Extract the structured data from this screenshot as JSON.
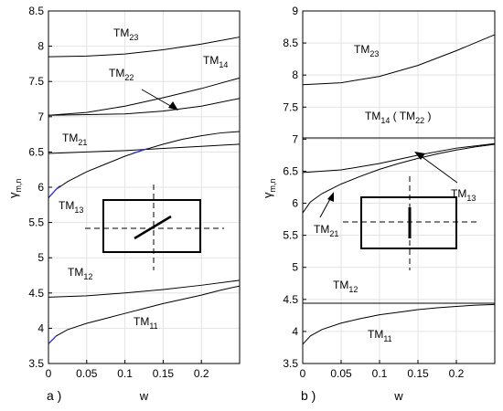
{
  "chart_data": [
    {
      "panel": "a )",
      "type": "line",
      "xlabel": "w",
      "ylabel": "γm,n",
      "xlim": [
        0,
        0.25
      ],
      "ylim": [
        3.5,
        8.5
      ],
      "xticks": [
        "0",
        "0.05",
        "0.1",
        "0.15",
        "0.2"
      ],
      "yticks": [
        "3.5",
        "4",
        "4.5",
        "5",
        "5.5",
        "6",
        "6.5",
        "7",
        "7.5",
        "8",
        "8.5"
      ],
      "grid": true,
      "series": [
        {
          "name": "TM23",
          "x": [
            0,
            0.05,
            0.1,
            0.15,
            0.2,
            0.25
          ],
          "y": [
            7.85,
            7.86,
            7.89,
            7.95,
            8.03,
            8.13
          ]
        },
        {
          "name": "TM14",
          "x": [
            0,
            0.05,
            0.1,
            0.15,
            0.2,
            0.25
          ],
          "y": [
            7.02,
            7.06,
            7.15,
            7.27,
            7.4,
            7.55
          ]
        },
        {
          "name": "TM22",
          "x": [
            0,
            0.05,
            0.1,
            0.15,
            0.2,
            0.25
          ],
          "y": [
            7.02,
            7.03,
            7.04,
            7.08,
            7.15,
            7.26
          ]
        },
        {
          "name": "TM21",
          "x": [
            0,
            0.05,
            0.1,
            0.15,
            0.2,
            0.25
          ],
          "y": [
            6.48,
            6.5,
            6.52,
            6.55,
            6.58,
            6.61
          ]
        },
        {
          "name": "TM13",
          "x": [
            0,
            0.01,
            0.025,
            0.05,
            0.075,
            0.1,
            0.125,
            0.15,
            0.175,
            0.2,
            0.225,
            0.25
          ],
          "y": [
            5.85,
            5.97,
            6.08,
            6.22,
            6.33,
            6.44,
            6.53,
            6.61,
            6.68,
            6.73,
            6.77,
            6.79
          ]
        },
        {
          "name": "TM12",
          "x": [
            0,
            0.05,
            0.1,
            0.15,
            0.2,
            0.25
          ],
          "y": [
            4.44,
            4.46,
            4.5,
            4.55,
            4.61,
            4.68
          ]
        },
        {
          "name": "TM11",
          "x": [
            0,
            0.01,
            0.025,
            0.05,
            0.075,
            0.1,
            0.125,
            0.15,
            0.175,
            0.2,
            0.225,
            0.25
          ],
          "y": [
            3.78,
            3.89,
            3.98,
            4.07,
            4.14,
            4.21,
            4.28,
            4.35,
            4.41,
            4.47,
            4.54,
            4.6
          ]
        }
      ],
      "labels": {
        "TM23": [
          "TM",
          "23"
        ],
        "TM14": [
          "TM",
          "14"
        ],
        "TM22": [
          "TM",
          "22"
        ],
        "TM21": [
          "TM",
          "21"
        ],
        "TM13": [
          "TM",
          "13"
        ],
        "TM12": [
          "TM",
          "12"
        ],
        "TM11": [
          "TM",
          "11"
        ]
      },
      "inset": "rectangle with tilted strip"
    },
    {
      "panel": "b )",
      "type": "line",
      "xlabel": "w",
      "ylabel": "γm,n",
      "xlim": [
        0,
        0.25
      ],
      "ylim": [
        3.5,
        9
      ],
      "xticks": [
        "0",
        "0.05",
        "0.1",
        "0.15",
        "0.2"
      ],
      "yticks": [
        "3.5",
        "4",
        "4.5",
        "5",
        "5.5",
        "6",
        "6.5",
        "7",
        "7.5",
        "8",
        "8.5",
        "9"
      ],
      "grid": true,
      "series": [
        {
          "name": "TM23",
          "x": [
            0,
            0.05,
            0.1,
            0.15,
            0.2,
            0.25
          ],
          "y": [
            7.85,
            7.88,
            7.98,
            8.15,
            8.38,
            8.63
          ]
        },
        {
          "name": "TM14 ( TM22 )",
          "x": [
            0,
            0.25
          ],
          "y": [
            7.02,
            7.02
          ]
        },
        {
          "name": "TM13",
          "x": [
            0,
            0.05,
            0.1,
            0.15,
            0.2,
            0.25
          ],
          "y": [
            6.48,
            6.52,
            6.62,
            6.75,
            6.86,
            6.93
          ]
        },
        {
          "name": "TM21",
          "x": [
            0,
            0.01,
            0.025,
            0.05,
            0.075,
            0.1,
            0.125,
            0.15,
            0.175,
            0.2,
            0.225,
            0.25
          ],
          "y": [
            5.85,
            6.02,
            6.15,
            6.3,
            6.42,
            6.53,
            6.62,
            6.7,
            6.77,
            6.83,
            6.88,
            6.92
          ]
        },
        {
          "name": "TM12",
          "x": [
            0,
            0.25
          ],
          "y": [
            4.44,
            4.44
          ]
        },
        {
          "name": "TM11",
          "x": [
            0,
            0.01,
            0.025,
            0.05,
            0.075,
            0.1,
            0.125,
            0.15,
            0.175,
            0.2,
            0.225,
            0.25
          ],
          "y": [
            3.8,
            3.93,
            4.03,
            4.13,
            4.2,
            4.26,
            4.3,
            4.34,
            4.37,
            4.39,
            4.41,
            4.42
          ]
        }
      ],
      "labels": {
        "TM23": [
          "TM",
          "23"
        ],
        "TM14": [
          "TM",
          "14"
        ],
        "TM22": [
          "TM",
          "22"
        ],
        "TM13": [
          "TM",
          "13"
        ],
        "TM21": [
          "TM",
          "21"
        ],
        "TM12": [
          "TM",
          "12"
        ],
        "TM11": [
          "TM",
          "11"
        ]
      },
      "inset": "rectangle with vertical strip"
    }
  ]
}
